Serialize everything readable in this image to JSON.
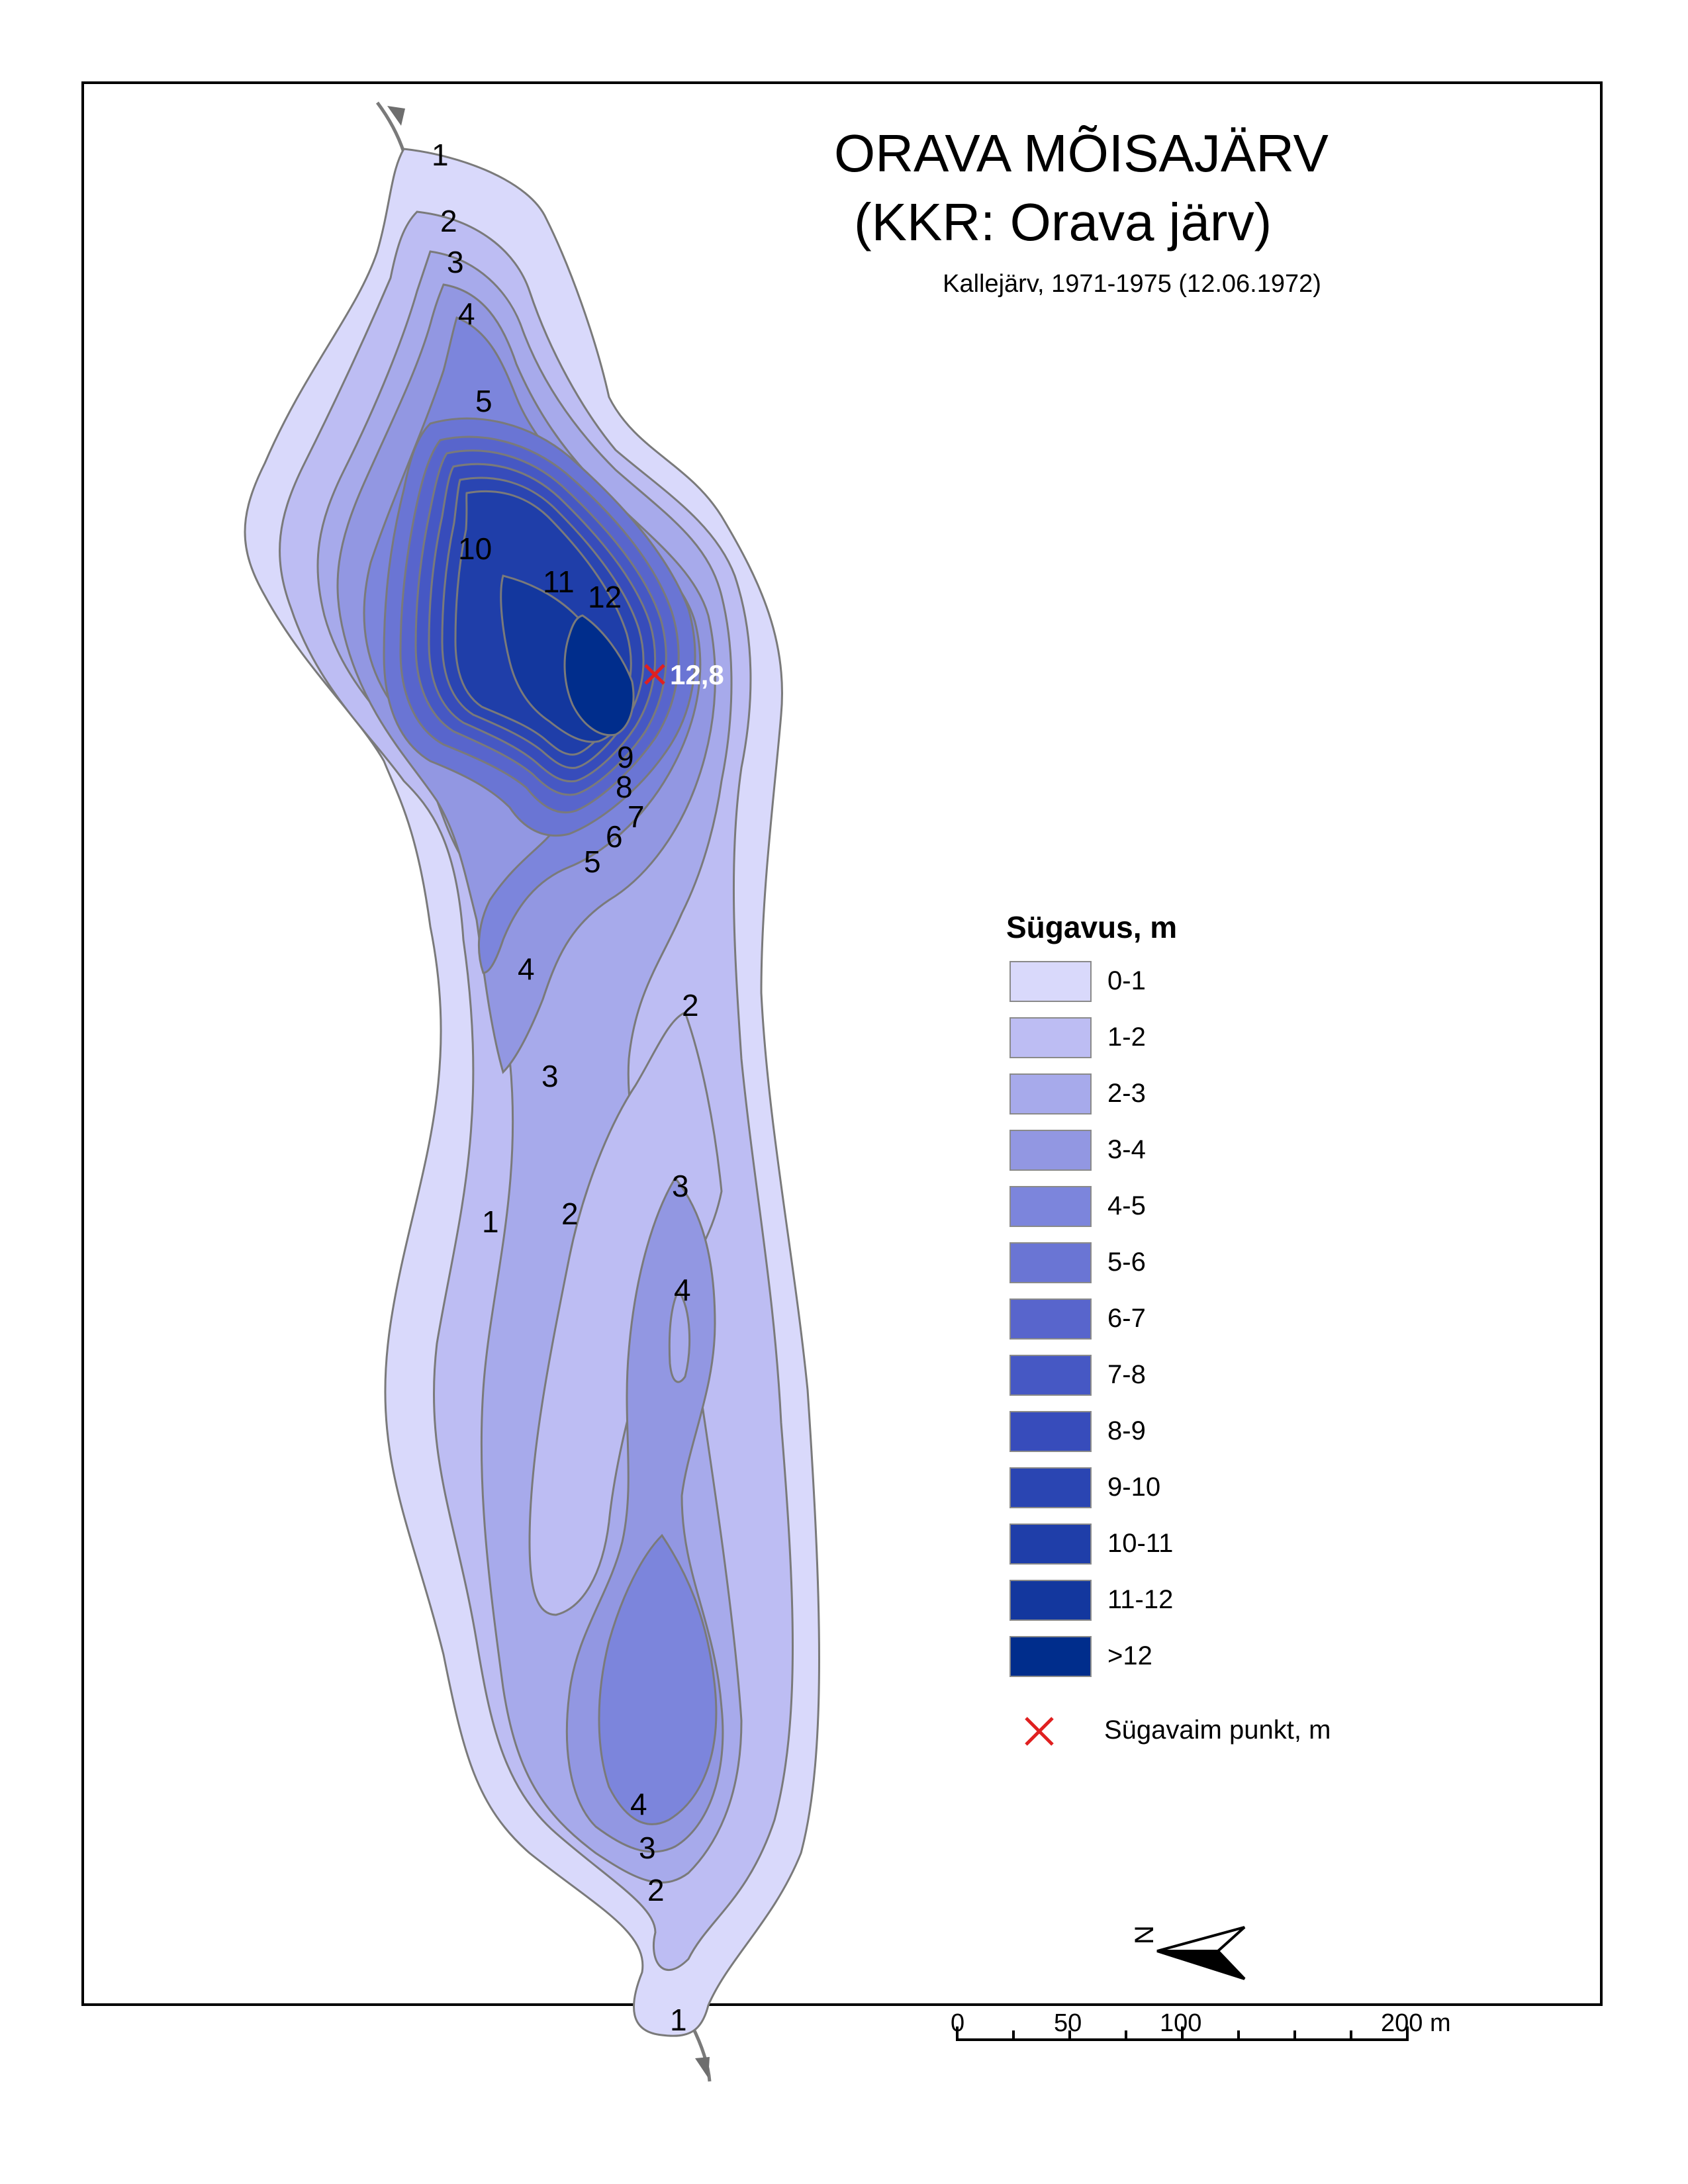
{
  "title": {
    "main": "ORAVA MÕISAJÄRV",
    "sub": "(KKR: Orava järv)",
    "source": "Kallejärv, 1971-1975 (12.06.1972)"
  },
  "legend": {
    "title": "Sügavus, m",
    "classes": [
      {
        "label": "0-1",
        "color": "#d9d9fb"
      },
      {
        "label": "1-2",
        "color": "#bdbdf3"
      },
      {
        "label": "2-3",
        "color": "#a7aaeb"
      },
      {
        "label": "3-4",
        "color": "#9297e2"
      },
      {
        "label": "4-5",
        "color": "#7c85dc"
      },
      {
        "label": "5-6",
        "color": "#6a75d4"
      },
      {
        "label": "6-7",
        "color": "#5865cc"
      },
      {
        "label": "7-8",
        "color": "#4658c4"
      },
      {
        "label": "8-9",
        "color": "#374cbb"
      },
      {
        "label": "9-10",
        "color": "#2a45b2"
      },
      {
        "label": "10-11",
        "color": "#1f3ea9"
      },
      {
        "label": "11-12",
        "color": "#13379e"
      },
      {
        "label": ">12",
        "color": "#002d8c"
      }
    ],
    "deepest_point_label": "Sügavaim punkt, m",
    "deepest_point_color": "#e02020"
  },
  "deepest_point": {
    "value_label": "12,8"
  },
  "contour_labels": [
    "1",
    "2",
    "3",
    "4",
    "5",
    "10",
    "11",
    "12",
    "9",
    "8",
    "7",
    "6",
    "5",
    "4",
    "2",
    "3",
    "1",
    "2",
    "3",
    "4",
    "4",
    "3",
    "2",
    "1"
  ],
  "north_arrow": {
    "label": "N",
    "icon": "north-arrow-icon"
  },
  "scale_bar": {
    "ticks": [
      "0",
      "50",
      "100",
      "200 m"
    ]
  },
  "outline_color": "#7a7a7a"
}
